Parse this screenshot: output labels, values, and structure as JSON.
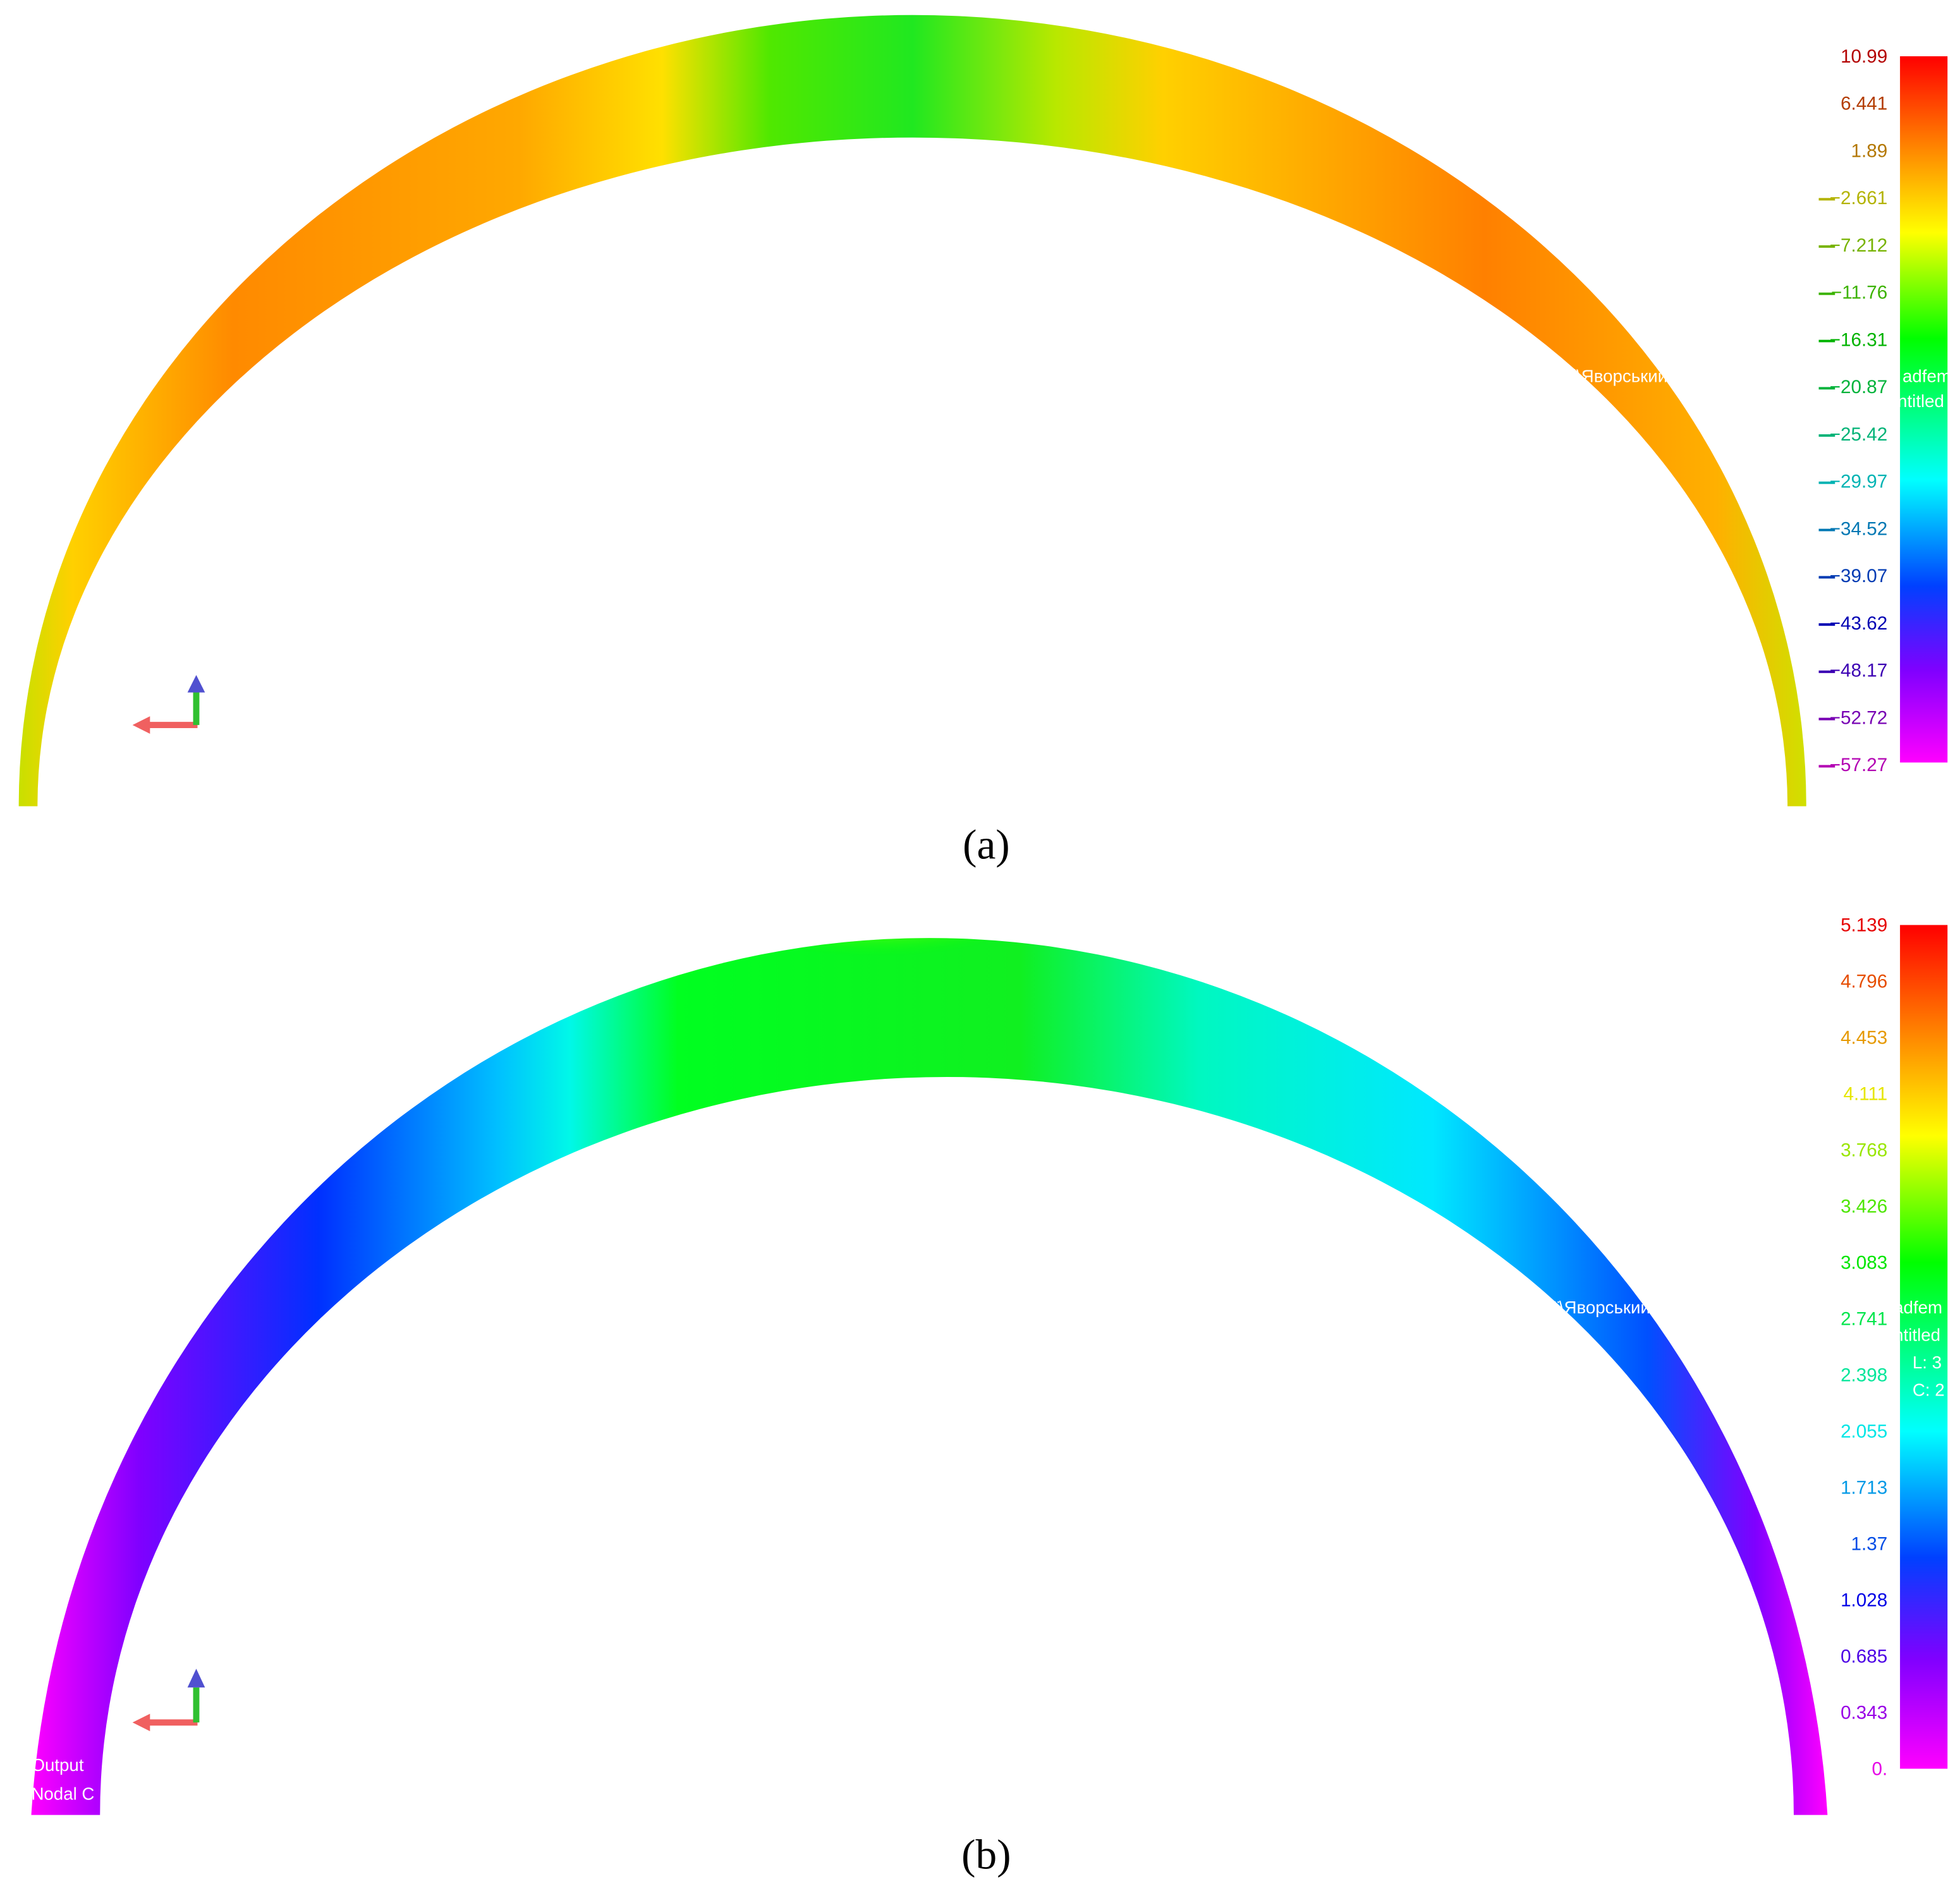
{
  "panels": [
    {
      "caption": "(a)",
      "legend": [
        "10.99",
        "6.441",
        "1.89",
        "−2.661",
        "−7.212",
        "−11.76",
        "−16.31",
        "−20.87",
        "−25.42",
        "−29.97",
        "−34.52",
        "−39.07",
        "−43.62",
        "−48.17",
        "−52.72",
        "−57.27"
      ],
      "overlay": [
        "ці\\Яворський О",
        "adfem",
        "ntitled"
      ]
    },
    {
      "caption": "(b)",
      "legend": [
        "5.139",
        "4.796",
        "4.453",
        "4.111",
        "3.768",
        "3.426",
        "3.083",
        "2.741",
        "2.398",
        "2.055",
        "1.713",
        "1.37",
        "1.028",
        "0.685",
        "0.343",
        "0."
      ],
      "overlay": [
        "рецензії\\Яворський Ол",
        "adfem",
        "ntitled",
        "L: 3",
        "C: 2",
        "Output",
        "Nodal C"
      ]
    }
  ]
}
